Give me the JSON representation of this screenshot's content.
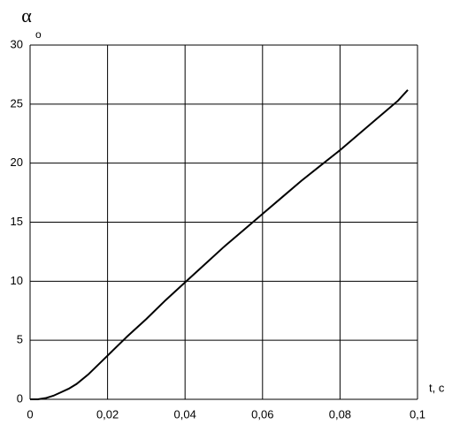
{
  "chart_data": {
    "type": "line",
    "y_label": "α",
    "y_unit": "o",
    "x_label": "t, c",
    "x": [
      0,
      0.002,
      0.004,
      0.006,
      0.008,
      0.01,
      0.012,
      0.015,
      0.02,
      0.025,
      0.03,
      0.035,
      0.04,
      0.045,
      0.05,
      0.055,
      0.06,
      0.065,
      0.07,
      0.075,
      0.08,
      0.085,
      0.09,
      0.095,
      0.0975
    ],
    "series": [
      {
        "color": "#000000",
        "values": [
          0,
          0,
          0.1,
          0.3,
          0.6,
          0.9,
          1.3,
          2.1,
          3.7,
          5.3,
          6.8,
          8.4,
          9.9,
          11.4,
          12.9,
          14.3,
          15.7,
          17.1,
          18.5,
          19.8,
          21.1,
          22.5,
          23.9,
          25.3,
          26.2
        ]
      }
    ],
    "xlim": [
      0,
      0.1
    ],
    "xticks": [
      0,
      {
        "value": 0.02,
        "label": "0,02"
      },
      {
        "value": 0.04,
        "label": "0,04"
      },
      {
        "value": 0.06,
        "label": "0,06"
      },
      {
        "value": 0.08,
        "label": "0,08"
      },
      {
        "value": 0.1,
        "label": "0,1"
      }
    ],
    "ylim": [
      0,
      30
    ],
    "yticks": [
      0,
      5,
      10,
      15,
      20,
      25,
      30
    ],
    "grid": true
  }
}
